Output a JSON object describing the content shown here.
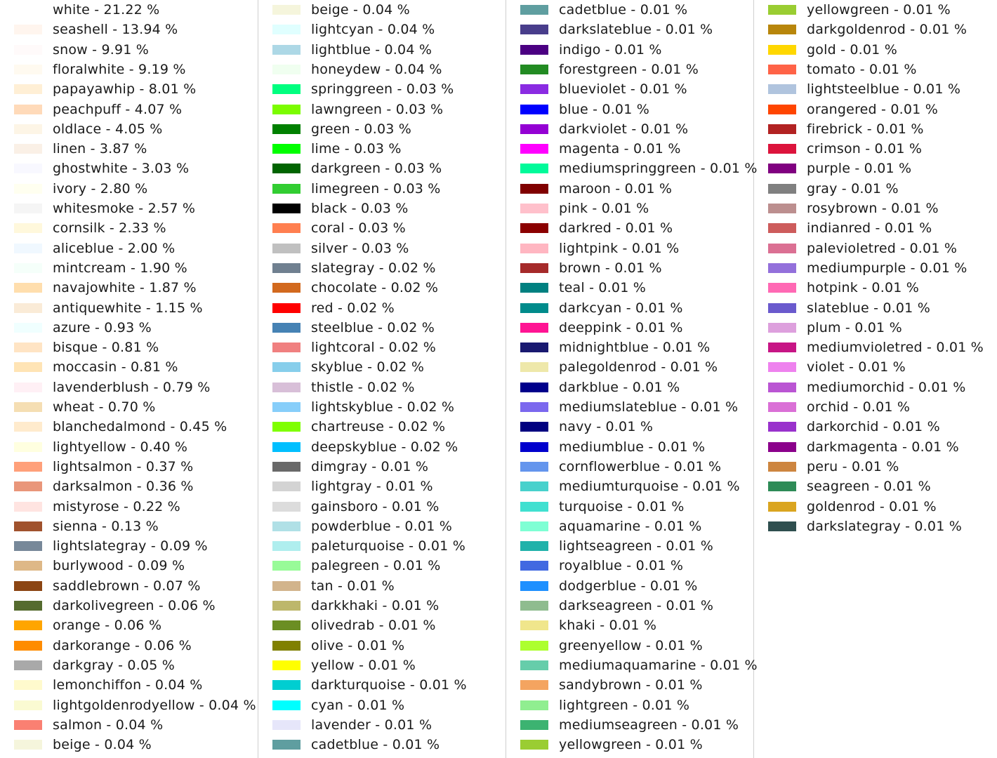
{
  "chart_data": {
    "type": "legend",
    "separator": " - ",
    "unit": "%",
    "columns": [
      {
        "entries": [
          {
            "name": "white",
            "value": "21.22",
            "color": "#ffffff"
          },
          {
            "name": "seashell",
            "value": "13.94",
            "color": "#fff5ee"
          },
          {
            "name": "snow",
            "value": "9.91",
            "color": "#fffafa"
          },
          {
            "name": "floralwhite",
            "value": "9.19",
            "color": "#fffaf0"
          },
          {
            "name": "papayawhip",
            "value": "8.01",
            "color": "#ffefd5"
          },
          {
            "name": "peachpuff",
            "value": "4.07",
            "color": "#ffdab9"
          },
          {
            "name": "oldlace",
            "value": "4.05",
            "color": "#fdf5e6"
          },
          {
            "name": "linen",
            "value": "3.87",
            "color": "#faf0e6"
          },
          {
            "name": "ghostwhite",
            "value": "3.03",
            "color": "#f8f8ff"
          },
          {
            "name": "ivory",
            "value": "2.80",
            "color": "#fffff0"
          },
          {
            "name": "whitesmoke",
            "value": "2.57",
            "color": "#f5f5f5"
          },
          {
            "name": "cornsilk",
            "value": "2.33",
            "color": "#fff8dc"
          },
          {
            "name": "aliceblue",
            "value": "2.00",
            "color": "#f0f8ff"
          },
          {
            "name": "mintcream",
            "value": "1.90",
            "color": "#f5fffa"
          },
          {
            "name": "navajowhite",
            "value": "1.87",
            "color": "#ffdead"
          },
          {
            "name": "antiquewhite",
            "value": "1.15",
            "color": "#faebd7"
          },
          {
            "name": "azure",
            "value": "0.93",
            "color": "#f0ffff"
          },
          {
            "name": "bisque",
            "value": "0.81",
            "color": "#ffe4c4"
          },
          {
            "name": "moccasin",
            "value": "0.81",
            "color": "#ffe4b5"
          },
          {
            "name": "lavenderblush",
            "value": "0.79",
            "color": "#fff0f5"
          },
          {
            "name": "wheat",
            "value": "0.70",
            "color": "#f5deb3"
          },
          {
            "name": "blanchedalmond",
            "value": "0.45",
            "color": "#ffebcd"
          },
          {
            "name": "lightyellow",
            "value": "0.40",
            "color": "#ffffe0"
          },
          {
            "name": "lightsalmon",
            "value": "0.37",
            "color": "#ffa07a"
          },
          {
            "name": "darksalmon",
            "value": "0.36",
            "color": "#e9967a"
          },
          {
            "name": "mistyrose",
            "value": "0.22",
            "color": "#ffe4e1"
          },
          {
            "name": "sienna",
            "value": "0.13",
            "color": "#a0522d"
          },
          {
            "name": "lightslategray",
            "value": "0.09",
            "color": "#778899"
          },
          {
            "name": "burlywood",
            "value": "0.09",
            "color": "#deb887"
          },
          {
            "name": "saddlebrown",
            "value": "0.07",
            "color": "#8b4513"
          },
          {
            "name": "darkolivegreen",
            "value": "0.06",
            "color": "#556b2f"
          },
          {
            "name": "orange",
            "value": "0.06",
            "color": "#ffa500"
          },
          {
            "name": "darkorange",
            "value": "0.06",
            "color": "#ff8c00"
          },
          {
            "name": "darkgray",
            "value": "0.05",
            "color": "#a9a9a9"
          },
          {
            "name": "lemonchiffon",
            "value": "0.04",
            "color": "#fffacd"
          },
          {
            "name": "lightgoldenrodyellow",
            "value": "0.04",
            "color": "#fafad2"
          },
          {
            "name": "salmon",
            "value": "0.04",
            "color": "#fa8072"
          },
          {
            "name": "beige",
            "value": "0.04",
            "color": "#f5f5dc"
          }
        ]
      },
      {
        "entries": [
          {
            "name": "beige",
            "value": "0.04",
            "color": "#f5f5dc"
          },
          {
            "name": "lightcyan",
            "value": "0.04",
            "color": "#e0ffff"
          },
          {
            "name": "lightblue",
            "value": "0.04",
            "color": "#add8e6"
          },
          {
            "name": "honeydew",
            "value": "0.04",
            "color": "#f0fff0"
          },
          {
            "name": "springgreen",
            "value": "0.03",
            "color": "#00ff7f"
          },
          {
            "name": "lawngreen",
            "value": "0.03",
            "color": "#7cfc00"
          },
          {
            "name": "green",
            "value": "0.03",
            "color": "#008000"
          },
          {
            "name": "lime",
            "value": "0.03",
            "color": "#00ff00"
          },
          {
            "name": "darkgreen",
            "value": "0.03",
            "color": "#006400"
          },
          {
            "name": "limegreen",
            "value": "0.03",
            "color": "#32cd32"
          },
          {
            "name": "black",
            "value": "0.03",
            "color": "#000000"
          },
          {
            "name": "coral",
            "value": "0.03",
            "color": "#ff7f50"
          },
          {
            "name": "silver",
            "value": "0.03",
            "color": "#c0c0c0"
          },
          {
            "name": "slategray",
            "value": "0.02",
            "color": "#708090"
          },
          {
            "name": "chocolate",
            "value": "0.02",
            "color": "#d2691e"
          },
          {
            "name": "red",
            "value": "0.02",
            "color": "#ff0000"
          },
          {
            "name": "steelblue",
            "value": "0.02",
            "color": "#4682b4"
          },
          {
            "name": "lightcoral",
            "value": "0.02",
            "color": "#f08080"
          },
          {
            "name": "skyblue",
            "value": "0.02",
            "color": "#87ceeb"
          },
          {
            "name": "thistle",
            "value": "0.02",
            "color": "#d8bfd8"
          },
          {
            "name": "lightskyblue",
            "value": "0.02",
            "color": "#87cefa"
          },
          {
            "name": "chartreuse",
            "value": "0.02",
            "color": "#7fff00"
          },
          {
            "name": "deepskyblue",
            "value": "0.02",
            "color": "#00bfff"
          },
          {
            "name": "dimgray",
            "value": "0.01",
            "color": "#696969"
          },
          {
            "name": "lightgray",
            "value": "0.01",
            "color": "#d3d3d3"
          },
          {
            "name": "gainsboro",
            "value": "0.01",
            "color": "#dcdcdc"
          },
          {
            "name": "powderblue",
            "value": "0.01",
            "color": "#b0e0e6"
          },
          {
            "name": "paleturquoise",
            "value": "0.01",
            "color": "#afeeee"
          },
          {
            "name": "palegreen",
            "value": "0.01",
            "color": "#98fb98"
          },
          {
            "name": "tan",
            "value": "0.01",
            "color": "#d2b48c"
          },
          {
            "name": "darkkhaki",
            "value": "0.01",
            "color": "#bdb76b"
          },
          {
            "name": "olivedrab",
            "value": "0.01",
            "color": "#6b8e23"
          },
          {
            "name": "olive",
            "value": "0.01",
            "color": "#808000"
          },
          {
            "name": "yellow",
            "value": "0.01",
            "color": "#ffff00"
          },
          {
            "name": "darkturquoise",
            "value": "0.01",
            "color": "#00ced1"
          },
          {
            "name": "cyan",
            "value": "0.01",
            "color": "#00ffff"
          },
          {
            "name": "lavender",
            "value": "0.01",
            "color": "#e6e6fa"
          },
          {
            "name": "cadetblue",
            "value": "0.01",
            "color": "#5f9ea0"
          }
        ]
      },
      {
        "entries": [
          {
            "name": "cadetblue",
            "value": "0.01",
            "color": "#5f9ea0"
          },
          {
            "name": "darkslateblue",
            "value": "0.01",
            "color": "#483d8b"
          },
          {
            "name": "indigo",
            "value": "0.01",
            "color": "#4b0082"
          },
          {
            "name": "forestgreen",
            "value": "0.01",
            "color": "#228b22"
          },
          {
            "name": "blueviolet",
            "value": "0.01",
            "color": "#8a2be2"
          },
          {
            "name": "blue",
            "value": "0.01",
            "color": "#0000ff"
          },
          {
            "name": "darkviolet",
            "value": "0.01",
            "color": "#9400d3"
          },
          {
            "name": "magenta",
            "value": "0.01",
            "color": "#ff00ff"
          },
          {
            "name": "mediumspringgreen",
            "value": "0.01",
            "color": "#00fa9a"
          },
          {
            "name": "maroon",
            "value": "0.01",
            "color": "#800000"
          },
          {
            "name": "pink",
            "value": "0.01",
            "color": "#ffc0cb"
          },
          {
            "name": "darkred",
            "value": "0.01",
            "color": "#8b0000"
          },
          {
            "name": "lightpink",
            "value": "0.01",
            "color": "#ffb6c1"
          },
          {
            "name": "brown",
            "value": "0.01",
            "color": "#a52a2a"
          },
          {
            "name": "teal",
            "value": "0.01",
            "color": "#008080"
          },
          {
            "name": "darkcyan",
            "value": "0.01",
            "color": "#008b8b"
          },
          {
            "name": "deeppink",
            "value": "0.01",
            "color": "#ff1493"
          },
          {
            "name": "midnightblue",
            "value": "0.01",
            "color": "#191970"
          },
          {
            "name": "palegoldenrod",
            "value": "0.01",
            "color": "#eee8aa"
          },
          {
            "name": "darkblue",
            "value": "0.01",
            "color": "#00008b"
          },
          {
            "name": "mediumslateblue",
            "value": "0.01",
            "color": "#7b68ee"
          },
          {
            "name": "navy",
            "value": "0.01",
            "color": "#000080"
          },
          {
            "name": "mediumblue",
            "value": "0.01",
            "color": "#0000cd"
          },
          {
            "name": "cornflowerblue",
            "value": "0.01",
            "color": "#6495ed"
          },
          {
            "name": "mediumturquoise",
            "value": "0.01",
            "color": "#48d1cc"
          },
          {
            "name": "turquoise",
            "value": "0.01",
            "color": "#40e0d0"
          },
          {
            "name": "aquamarine",
            "value": "0.01",
            "color": "#7fffd4"
          },
          {
            "name": "lightseagreen",
            "value": "0.01",
            "color": "#20b2aa"
          },
          {
            "name": "royalblue",
            "value": "0.01",
            "color": "#4169e1"
          },
          {
            "name": "dodgerblue",
            "value": "0.01",
            "color": "#1e90ff"
          },
          {
            "name": "darkseagreen",
            "value": "0.01",
            "color": "#8fbc8f"
          },
          {
            "name": "khaki",
            "value": "0.01",
            "color": "#f0e68c"
          },
          {
            "name": "greenyellow",
            "value": "0.01",
            "color": "#adff2f"
          },
          {
            "name": "mediumaquamarine",
            "value": "0.01",
            "color": "#66cdaa"
          },
          {
            "name": "sandybrown",
            "value": "0.01",
            "color": "#f4a460"
          },
          {
            "name": "lightgreen",
            "value": "0.01",
            "color": "#90ee90"
          },
          {
            "name": "mediumseagreen",
            "value": "0.01",
            "color": "#3cb371"
          },
          {
            "name": "yellowgreen",
            "value": "0.01",
            "color": "#9acd32"
          }
        ]
      },
      {
        "entries": [
          {
            "name": "yellowgreen",
            "value": "0.01",
            "color": "#9acd32"
          },
          {
            "name": "darkgoldenrod",
            "value": "0.01",
            "color": "#b8860b"
          },
          {
            "name": "gold",
            "value": "0.01",
            "color": "#ffd700"
          },
          {
            "name": "tomato",
            "value": "0.01",
            "color": "#ff6347"
          },
          {
            "name": "lightsteelblue",
            "value": "0.01",
            "color": "#b0c4de"
          },
          {
            "name": "orangered",
            "value": "0.01",
            "color": "#ff4500"
          },
          {
            "name": "firebrick",
            "value": "0.01",
            "color": "#b22222"
          },
          {
            "name": "crimson",
            "value": "0.01",
            "color": "#dc143c"
          },
          {
            "name": "purple",
            "value": "0.01",
            "color": "#800080"
          },
          {
            "name": "gray",
            "value": "0.01",
            "color": "#808080"
          },
          {
            "name": "rosybrown",
            "value": "0.01",
            "color": "#bc8f8f"
          },
          {
            "name": "indianred",
            "value": "0.01",
            "color": "#cd5c5c"
          },
          {
            "name": "palevioletred",
            "value": "0.01",
            "color": "#db7093"
          },
          {
            "name": "mediumpurple",
            "value": "0.01",
            "color": "#9370db"
          },
          {
            "name": "hotpink",
            "value": "0.01",
            "color": "#ff69b4"
          },
          {
            "name": "slateblue",
            "value": "0.01",
            "color": "#6a5acd"
          },
          {
            "name": "plum",
            "value": "0.01",
            "color": "#dda0dd"
          },
          {
            "name": "mediumvioletred",
            "value": "0.01",
            "color": "#c71585"
          },
          {
            "name": "violet",
            "value": "0.01",
            "color": "#ee82ee"
          },
          {
            "name": "mediumorchid",
            "value": "0.01",
            "color": "#ba55d3"
          },
          {
            "name": "orchid",
            "value": "0.01",
            "color": "#da70d6"
          },
          {
            "name": "darkorchid",
            "value": "0.01",
            "color": "#9932cc"
          },
          {
            "name": "darkmagenta",
            "value": "0.01",
            "color": "#8b008b"
          },
          {
            "name": "peru",
            "value": "0.01",
            "color": "#cd853f"
          },
          {
            "name": "seagreen",
            "value": "0.01",
            "color": "#2e8b57"
          },
          {
            "name": "goldenrod",
            "value": "0.01",
            "color": "#daa520"
          },
          {
            "name": "darkslategray",
            "value": "0.01",
            "color": "#2f4f4f"
          }
        ]
      }
    ]
  }
}
